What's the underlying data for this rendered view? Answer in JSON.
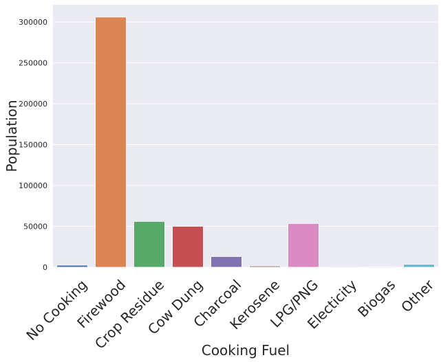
{
  "chart_data": {
    "type": "bar",
    "title": "",
    "xlabel": "Cooking Fuel",
    "ylabel": "Population",
    "categories": [
      "No Cooking",
      "Firewood",
      "Crop Residue",
      "Cow Dung",
      "Charcoal",
      "Kerosene",
      "LPG/PNG",
      "Electicity",
      "Biogas",
      "Other"
    ],
    "values": [
      2500,
      306000,
      56000,
      50000,
      13000,
      1500,
      53500,
      800,
      300,
      3500
    ],
    "colors": [
      "#4c72b0",
      "#dd8452",
      "#55a868",
      "#c44e52",
      "#8172b3",
      "#937860",
      "#da8bc3",
      "#8c8c8c",
      "#ccb974",
      "#64b5cd"
    ],
    "ylim": [
      0,
      321000
    ],
    "yticks": [
      0,
      50000,
      100000,
      150000,
      200000,
      250000,
      300000
    ],
    "ytick_labels": [
      "0",
      "50000",
      "100000",
      "150000",
      "200000",
      "250000",
      "300000"
    ],
    "grid": true,
    "background": "#eaeaf2",
    "grid_color": "#ffffff"
  }
}
